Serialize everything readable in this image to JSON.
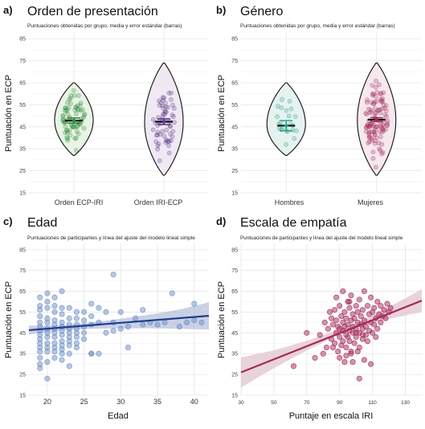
{
  "colors": {
    "green": "#2e8b3a",
    "green_fill": "#e9f3e6",
    "purple": "#5e3a8c",
    "purple_fill": "#efe9f3",
    "teal": "#2aa189",
    "teal_fill": "#e6f2ef",
    "crimson": "#a32a58",
    "crimson_fill": "#f5e8ee",
    "navy": "#1f3c8c",
    "blue_points": "#6f8fc7",
    "ribbon": "#b8c2dc",
    "ribbon_red": "#e2c4cf",
    "grid": "#e6e6e6"
  },
  "chart_data": [
    {
      "id": "a",
      "panel_label": "a)",
      "type": "violin",
      "title": "Orden de presentación",
      "subtitle": "Puntuaciones obtenidas por grupo, media y error estándar (barras)",
      "ylabel": "Puntuación en ECP",
      "ylim": [
        15,
        88
      ],
      "yticks": [
        15,
        25,
        35,
        45,
        55,
        65,
        75,
        85
      ],
      "categories": [
        "Orden ECP-IRI",
        "Orden IRI-ECP"
      ],
      "groups": [
        {
          "name": "Orden ECP-IRI",
          "color": "green",
          "fill": "green_fill",
          "min": 32,
          "max": 65,
          "mode": 48,
          "mean": 47.8,
          "se": 1.2,
          "n": 70
        },
        {
          "name": "Orden IRI-ECP",
          "color": "purple",
          "fill": "purple_fill",
          "min": 23,
          "max": 74,
          "mode": 47,
          "mean": 47.3,
          "se": 1.3,
          "n": 60
        }
      ]
    },
    {
      "id": "b",
      "panel_label": "b)",
      "type": "violin",
      "title": "Género",
      "subtitle": "Puntuaciones obtenidas por grupo, media y error estándar (barras)",
      "ylabel": "Puntuación en ECP",
      "ylim": [
        15,
        88
      ],
      "yticks": [
        15,
        25,
        35,
        45,
        55,
        65,
        75,
        85
      ],
      "categories": [
        "Hombres",
        "Mujeres"
      ],
      "groups": [
        {
          "name": "Hombres",
          "color": "teal",
          "fill": "teal_fill",
          "min": 32,
          "max": 65,
          "mode": 46,
          "mean": 45.5,
          "se": 2.3,
          "n": 22
        },
        {
          "name": "Mujeres",
          "color": "crimson",
          "fill": "crimson_fill",
          "min": 23,
          "max": 74,
          "mode": 48,
          "mean": 48.2,
          "se": 0.9,
          "n": 110
        }
      ]
    },
    {
      "id": "c",
      "panel_label": "c)",
      "type": "scatter",
      "title": "Edad",
      "subtitle": "Puntuaciones de participantes y línea del ajuste del modelo lineal simple",
      "xlabel": "Edad",
      "ylabel": "Puntuación en ECP",
      "xlim": [
        17.5,
        42
      ],
      "ylim": [
        15,
        88
      ],
      "xticks": [
        20,
        25,
        30,
        35,
        40
      ],
      "yticks": [
        15,
        25,
        35,
        45,
        55,
        65,
        75,
        85
      ],
      "point_color": "blue_points",
      "line_color": "navy",
      "ribbon_color": "ribbon",
      "fit": {
        "x": [
          17.5,
          42
        ],
        "y": [
          46.3,
          53.2
        ],
        "band": [
          [
            17.5,
            44.2,
            48.4
          ],
          [
            22,
            46.2,
            48.7
          ],
          [
            26,
            47.0,
            50.0
          ],
          [
            30,
            47.2,
            51.8
          ],
          [
            34,
            47.2,
            53.8
          ],
          [
            38,
            47.0,
            56.2
          ],
          [
            42,
            46.6,
            59.7
          ]
        ]
      },
      "x": [
        19,
        19,
        19,
        19,
        19,
        19,
        19,
        19,
        19,
        19,
        19,
        19,
        19,
        19,
        19,
        20,
        20,
        20,
        20,
        20,
        20,
        20,
        20,
        20,
        20,
        20,
        20,
        20,
        21,
        21,
        21,
        21,
        21,
        21,
        21,
        21,
        21,
        21,
        21,
        21,
        22,
        22,
        22,
        22,
        22,
        22,
        22,
        22,
        22,
        22,
        22,
        22,
        23,
        23,
        23,
        23,
        23,
        23,
        23,
        23,
        23,
        23,
        24,
        24,
        24,
        24,
        24,
        24,
        24,
        24,
        25,
        25,
        25,
        25,
        25,
        26,
        26,
        26,
        26,
        26,
        27,
        27,
        27,
        28,
        28,
        29,
        29,
        29,
        30,
        30,
        31,
        31,
        32,
        33,
        33,
        34,
        35,
        36,
        37,
        38,
        39,
        40,
        40,
        41
      ],
      "y": [
        62,
        58,
        56,
        53,
        50,
        48,
        46,
        44,
        42,
        40,
        38,
        36,
        33,
        30,
        28,
        64,
        60,
        57,
        52,
        50,
        47,
        45,
        43,
        40,
        38,
        36,
        23,
        31,
        62,
        58,
        55,
        51,
        49,
        47,
        45,
        43,
        40,
        38,
        36,
        33,
        65,
        57,
        54,
        50,
        48,
        46,
        44,
        41,
        39,
        37,
        35,
        32,
        57,
        52,
        49,
        47,
        45,
        43,
        41,
        39,
        35,
        29,
        55,
        52,
        49,
        47,
        45,
        43,
        40,
        38,
        55,
        51,
        48,
        45,
        42,
        59,
        53,
        49,
        35,
        35,
        57,
        50,
        35,
        55,
        45,
        73,
        50,
        46,
        55,
        47,
        48,
        38,
        52,
        56,
        49,
        50,
        49,
        50,
        64,
        48,
        50,
        51,
        59,
        50
      ]
    },
    {
      "id": "d",
      "panel_label": "d)",
      "type": "scatter",
      "title": "Escala de empatía",
      "subtitle": "Puntuaciones de participantes y línea del ajuste del modelo lineal simple",
      "xlabel": "Puntaje en escala IRI",
      "ylabel": "Puntuación en ECP",
      "xlim": [
        30,
        140
      ],
      "ylim": [
        15,
        88
      ],
      "xticks": [
        30,
        50,
        70,
        90,
        110,
        130
      ],
      "yticks": [
        15,
        25,
        35,
        45,
        55,
        65,
        75,
        85
      ],
      "point_color": "crimson",
      "line_color": "crimson",
      "ribbon_color": "ribbon_red",
      "fit": {
        "x": [
          30,
          140
        ],
        "y": [
          26.0,
          60.5
        ],
        "band": [
          [
            30,
            18.8,
            33.2
          ],
          [
            50,
            28.0,
            36.6
          ],
          [
            70,
            36.5,
            41.2
          ],
          [
            90,
            44.2,
            46.8
          ],
          [
            100,
            47.3,
            49.7
          ],
          [
            110,
            49.8,
            53.5
          ],
          [
            125,
            52.5,
            59.5
          ],
          [
            140,
            55.0,
            66.0
          ]
        ]
      },
      "x": [
        62,
        70,
        75,
        78,
        80,
        81,
        82,
        83,
        84,
        85,
        85,
        86,
        87,
        87,
        88,
        88,
        89,
        89,
        90,
        90,
        90,
        91,
        91,
        92,
        92,
        92,
        93,
        93,
        94,
        94,
        94,
        95,
        95,
        95,
        96,
        96,
        96,
        97,
        97,
        97,
        98,
        98,
        98,
        99,
        99,
        100,
        100,
        100,
        101,
        101,
        102,
        102,
        102,
        103,
        103,
        104,
        104,
        104,
        105,
        105,
        106,
        106,
        107,
        107,
        108,
        108,
        109,
        109,
        110,
        110,
        111,
        111,
        112,
        112,
        113,
        113,
        114,
        115,
        115,
        116,
        117,
        118,
        119,
        120,
        121,
        88,
        92,
        96,
        100,
        104,
        93,
        97,
        101,
        105,
        109,
        86,
        90,
        94,
        98,
        102
      ],
      "y": [
        29,
        45,
        33,
        44,
        35,
        50,
        38,
        47,
        55,
        42,
        52,
        49,
        40,
        56,
        45,
        51,
        36,
        48,
        58,
        43,
        47,
        53,
        39,
        50,
        46,
        41,
        55,
        48,
        44,
        52,
        38,
        60,
        49,
        43,
        57,
        46,
        41,
        51,
        63,
        36,
        54,
        45,
        48,
        40,
        52,
        58,
        47,
        43,
        55,
        50,
        38,
        61,
        45,
        49,
        53,
        42,
        56,
        47,
        65,
        51,
        44,
        48,
        58,
        41,
        54,
        46,
        50,
        62,
        45,
        55,
        49,
        57,
        43,
        52,
        60,
        47,
        54,
        50,
        58,
        53,
        56,
        52,
        59,
        55,
        57,
        62,
        65,
        60,
        45,
        44,
        31,
        35,
        36,
        32,
        30,
        38,
        33,
        34,
        31,
        23
      ]
    }
  ]
}
